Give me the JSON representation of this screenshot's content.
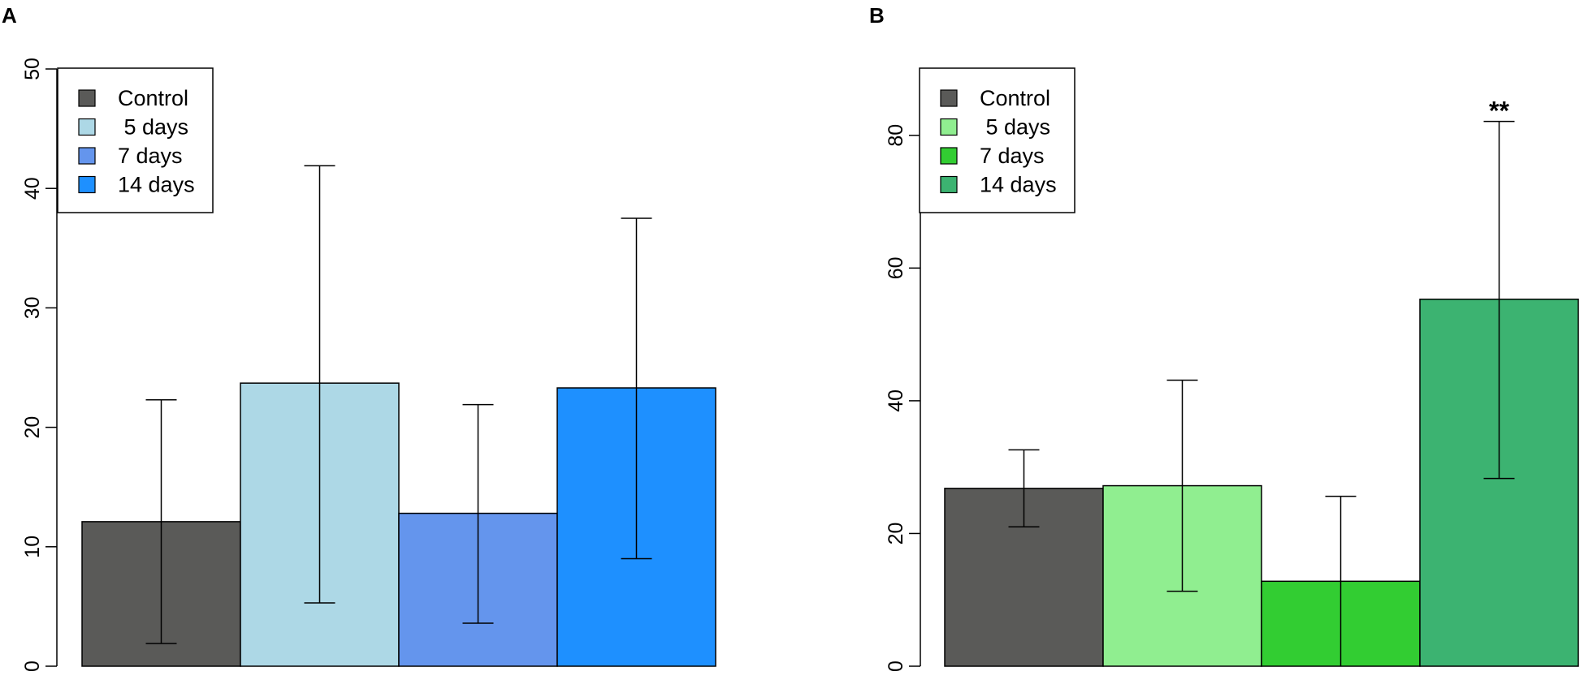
{
  "chart_data": [
    {
      "panel": "A",
      "type": "bar",
      "categories": [
        "Control",
        "5 days",
        "7 days",
        "14 days"
      ],
      "values": [
        12.1,
        23.7,
        12.8,
        23.3
      ],
      "error_low": [
        1.9,
        5.3,
        3.6,
        9.0
      ],
      "error_high": [
        22.3,
        41.9,
        21.9,
        37.5
      ],
      "colors": [
        "#5a5a58",
        "#add8e6",
        "#6495ed",
        "#1e90ff"
      ],
      "ylim": [
        0,
        50
      ],
      "yticks": [
        "0",
        "10",
        "20",
        "30",
        "40",
        "50"
      ],
      "legend": [
        "Control",
        " 5 days",
        "7 days",
        "14 days"
      ],
      "legend_position": "top-left",
      "annotations": []
    },
    {
      "panel": "B",
      "type": "bar",
      "categories": [
        "Control",
        "5 days",
        "7 days",
        "14 days"
      ],
      "values": [
        26.8,
        27.2,
        12.8,
        55.3
      ],
      "error_low": [
        21.0,
        11.3,
        0,
        28.3
      ],
      "error_high": [
        32.6,
        43.1,
        25.6,
        82.1
      ],
      "colors": [
        "#5a5a58",
        "#90ee90",
        "#32cd32",
        "#3cb371"
      ],
      "ylim": [
        0,
        90
      ],
      "yticks": [
        "0",
        "20",
        "40",
        "60",
        "80"
      ],
      "legend": [
        "Control",
        " 5 days",
        "7 days",
        "14 days"
      ],
      "legend_position": "top-left",
      "annotations": [
        {
          "bar_index": 3,
          "text": "**"
        }
      ]
    }
  ]
}
